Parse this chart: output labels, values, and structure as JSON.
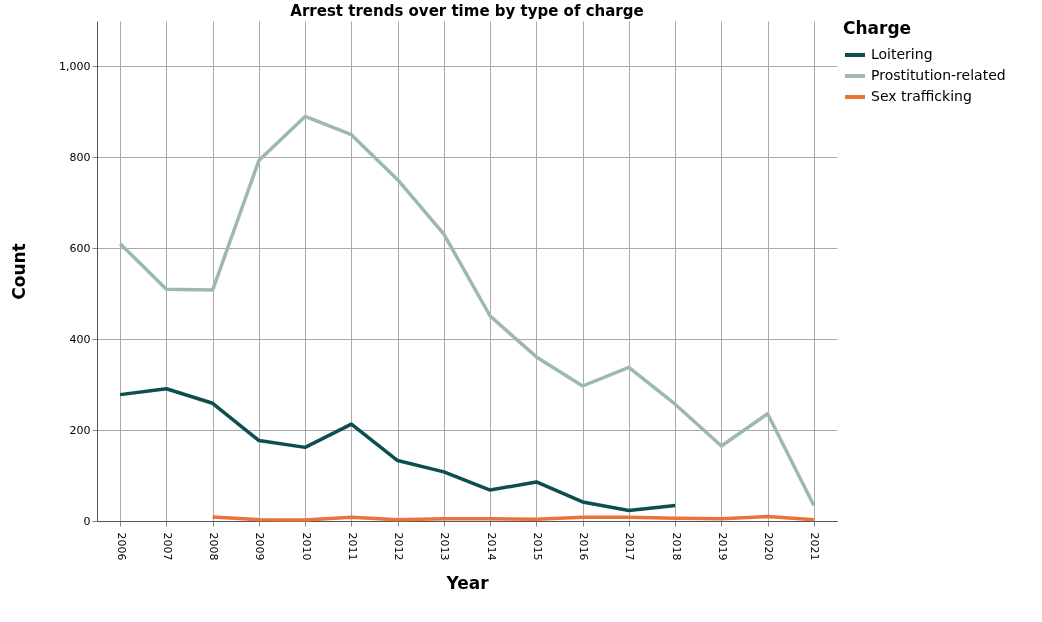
{
  "chart_data": {
    "type": "line",
    "title": "Arrest trends over time by type of charge",
    "xlabel": "Year",
    "ylabel": "Count",
    "legend_title": "Charge",
    "categories": [
      "2006",
      "2007",
      "2008",
      "2009",
      "2010",
      "2011",
      "2012",
      "2013",
      "2014",
      "2015",
      "2016",
      "2017",
      "2018",
      "2019",
      "2020",
      "2021"
    ],
    "series": [
      {
        "name": "Loitering",
        "color": "#0d4f4e",
        "values": [
          278,
          291,
          259,
          177,
          162,
          213,
          133,
          108,
          68,
          86,
          42,
          23,
          34,
          null,
          null,
          null
        ]
      },
      {
        "name": "Prostitution-related",
        "color": "#9dbaa9",
        "values": [
          610,
          510,
          508,
          793,
          890,
          850,
          751,
          631,
          451,
          361,
          297,
          338,
          257,
          165,
          236,
          34
        ]
      },
      {
        "name": "Sex trafficking",
        "color": "#e8743b",
        "values": [
          null,
          null,
          9,
          3,
          2,
          8,
          3,
          5,
          5,
          4,
          8,
          8,
          6,
          5,
          10,
          3
        ]
      }
    ],
    "ylim": [
      0,
      1100
    ],
    "yticks": [
      0,
      {
        "value": 200,
        "label": "200"
      },
      {
        "value": 400,
        "label": "400"
      },
      {
        "value": 600,
        "label": "600"
      },
      {
        "value": 800,
        "label": "800"
      },
      {
        "value": 1000,
        "label": "1,000"
      }
    ],
    "grid": true,
    "legend": "top right",
    "line_style": "solid",
    "marker": "none"
  }
}
